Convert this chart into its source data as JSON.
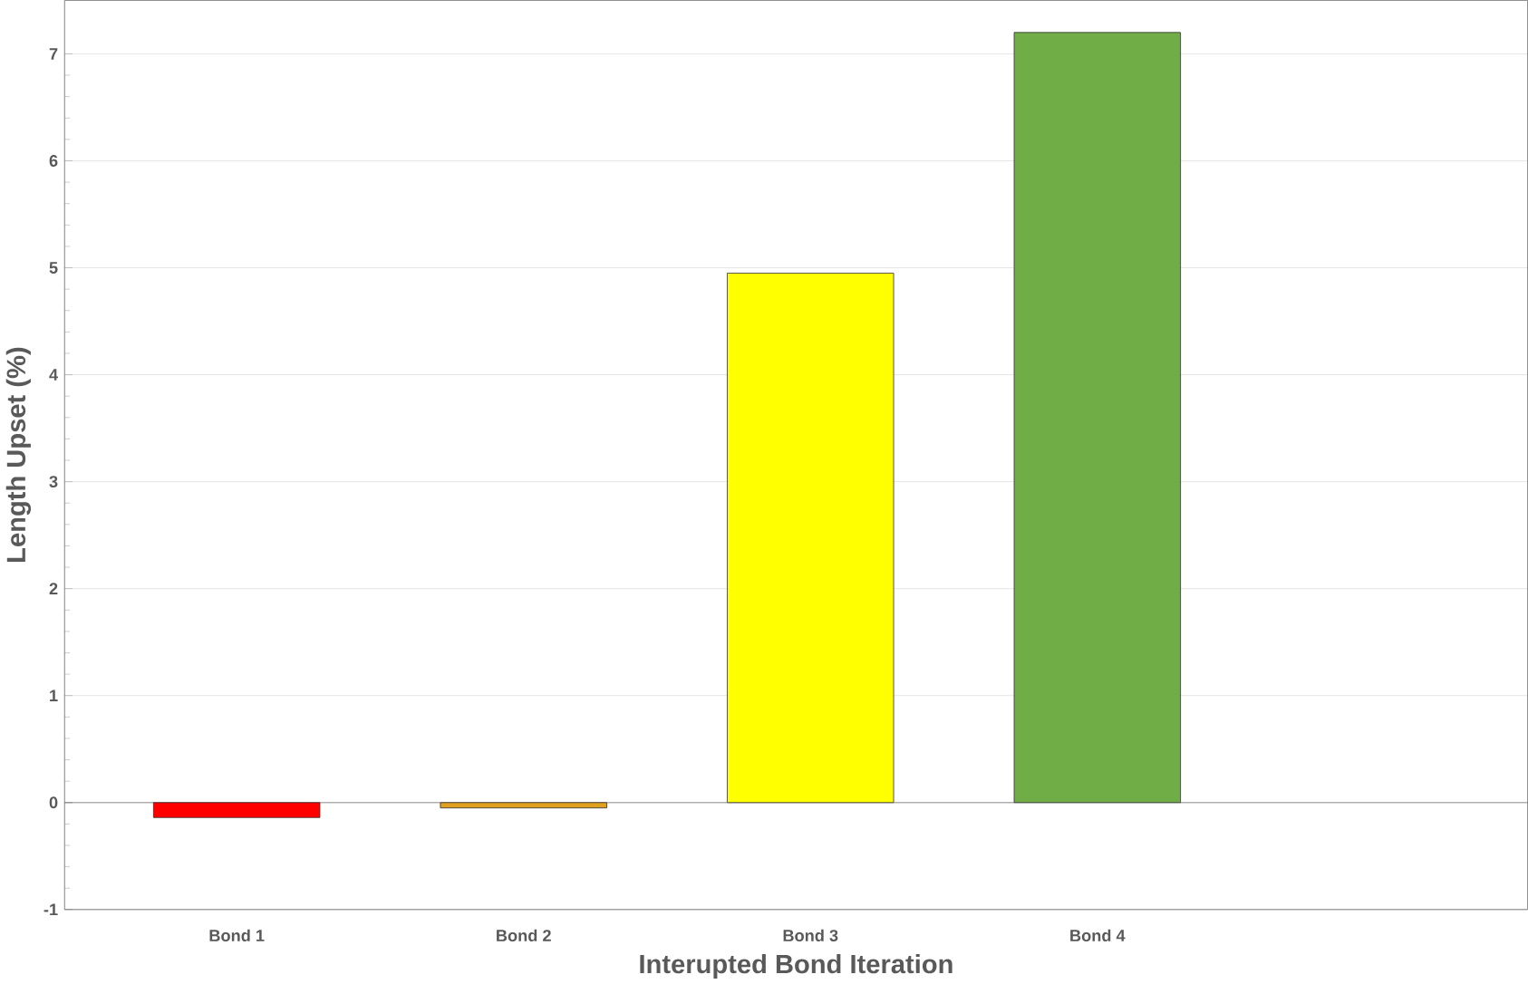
{
  "chart_data": {
    "type": "bar",
    "xlabel": "Interupted Bond Iteration",
    "ylabel": "Length Upset (%)",
    "categories": [
      "Bond 1",
      "Bond 2",
      "Bond 3",
      "Bond 4"
    ],
    "values": [
      -0.14,
      -0.05,
      4.95,
      7.2
    ],
    "colors": [
      "#ff0000",
      "#e0a020",
      "#ffff00",
      "#70ad47"
    ],
    "ylim": [
      -1,
      7.5
    ],
    "yticks": [
      -1,
      0,
      1,
      2,
      3,
      4,
      5,
      6,
      7
    ],
    "grid": "y"
  }
}
